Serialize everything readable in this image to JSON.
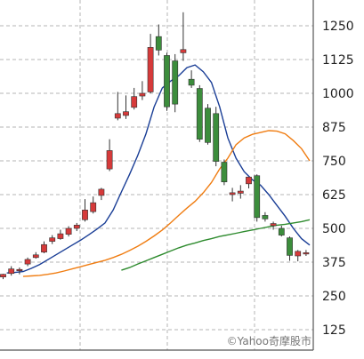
{
  "chart_data": {
    "type": "candlestick",
    "title": "",
    "xlabel": "",
    "ylabel": "",
    "ylim": [
      80,
      1330
    ],
    "y_ticks": [
      125,
      250,
      375,
      500,
      625,
      750,
      875,
      1000,
      1125,
      1250
    ],
    "grid": true,
    "legend": "none",
    "candles": [
      {
        "open": 320,
        "high": 332,
        "low": 312,
        "close": 330
      },
      {
        "open": 333,
        "high": 360,
        "low": 325,
        "close": 350
      },
      {
        "open": 345,
        "high": 355,
        "low": 330,
        "close": 348
      },
      {
        "open": 368,
        "high": 392,
        "low": 360,
        "close": 385
      },
      {
        "open": 392,
        "high": 412,
        "low": 388,
        "close": 402
      },
      {
        "open": 412,
        "high": 452,
        "low": 408,
        "close": 440
      },
      {
        "open": 452,
        "high": 475,
        "low": 442,
        "close": 465
      },
      {
        "open": 462,
        "high": 495,
        "low": 458,
        "close": 480
      },
      {
        "open": 478,
        "high": 508,
        "low": 470,
        "close": 500
      },
      {
        "open": 500,
        "high": 520,
        "low": 490,
        "close": 512
      },
      {
        "open": 532,
        "high": 608,
        "low": 525,
        "close": 568
      },
      {
        "open": 562,
        "high": 618,
        "low": 555,
        "close": 595
      },
      {
        "open": 622,
        "high": 650,
        "low": 605,
        "close": 645
      },
      {
        "open": 720,
        "high": 830,
        "low": 712,
        "close": 788
      },
      {
        "open": 908,
        "high": 1005,
        "low": 900,
        "close": 925
      },
      {
        "open": 918,
        "high": 992,
        "low": 905,
        "close": 932
      },
      {
        "open": 948,
        "high": 1020,
        "low": 940,
        "close": 988
      },
      {
        "open": 990,
        "high": 1045,
        "low": 975,
        "close": 1000
      },
      {
        "open": 1005,
        "high": 1220,
        "low": 1000,
        "close": 1170
      },
      {
        "open": 1210,
        "high": 1255,
        "low": 1140,
        "close": 1160
      },
      {
        "open": 1140,
        "high": 1150,
        "low": 935,
        "close": 950
      },
      {
        "open": 1120,
        "high": 1145,
        "low": 930,
        "close": 960
      },
      {
        "open": 1150,
        "high": 1300,
        "low": 1120,
        "close": 1162
      },
      {
        "open": 1052,
        "high": 1085,
        "low": 1020,
        "close": 1030
      },
      {
        "open": 1018,
        "high": 1030,
        "low": 820,
        "close": 830
      },
      {
        "open": 945,
        "high": 960,
        "low": 810,
        "close": 818
      },
      {
        "open": 925,
        "high": 950,
        "low": 730,
        "close": 748
      },
      {
        "open": 745,
        "high": 755,
        "low": 660,
        "close": 672
      },
      {
        "open": 625,
        "high": 650,
        "low": 600,
        "close": 632
      },
      {
        "open": 630,
        "high": 660,
        "low": 610,
        "close": 638
      },
      {
        "open": 665,
        "high": 690,
        "low": 648,
        "close": 690
      },
      {
        "open": 695,
        "high": 700,
        "low": 525,
        "close": 540
      },
      {
        "open": 548,
        "high": 560,
        "low": 525,
        "close": 535
      },
      {
        "open": 510,
        "high": 525,
        "low": 495,
        "close": 518
      },
      {
        "open": 500,
        "high": 510,
        "low": 470,
        "close": 475
      },
      {
        "open": 465,
        "high": 470,
        "low": 380,
        "close": 400
      },
      {
        "open": 398,
        "high": 420,
        "low": 378,
        "close": 415
      },
      {
        "open": 410,
        "high": 420,
        "low": 398,
        "close": 410
      }
    ],
    "series": [
      {
        "values": [
          335,
          337,
          340,
          352,
          366,
          384,
          402,
          420,
          438,
          456,
          476,
          497,
          520,
          568,
          635,
          700,
          770,
          850,
          950,
          1020,
          1045,
          1065,
          1095,
          1105,
          1080,
          1040,
          950,
          835,
          760,
          710,
          680,
          660,
          625,
          585,
          545,
          500,
          462,
          438
        ],
        "color": "#1a3e96"
      },
      {
        "values": [
          322,
          324,
          326,
          330,
          335,
          342,
          350,
          358,
          366,
          374,
          382,
          392,
          404,
          418,
          434,
          452,
          472,
          494,
          520,
          548,
          575,
          600,
          632,
          670,
          720,
          760,
          810,
          835,
          848,
          855,
          862,
          860,
          850,
          825,
          795,
          750
        ],
        "color": "#f07d12"
      },
      {
        "values": [
          345,
          355,
          368,
          380,
          392,
          404,
          416,
          428,
          438,
          446,
          455,
          462,
          470,
          476,
          482,
          488,
          494,
          500,
          506,
          512,
          515,
          520,
          525,
          532
        ],
        "color": "#2e8b2e"
      }
    ],
    "up_color": "#d63a3a",
    "down_color": "#3c8d3c",
    "watermark": "©Yahoo奇摩股市"
  }
}
